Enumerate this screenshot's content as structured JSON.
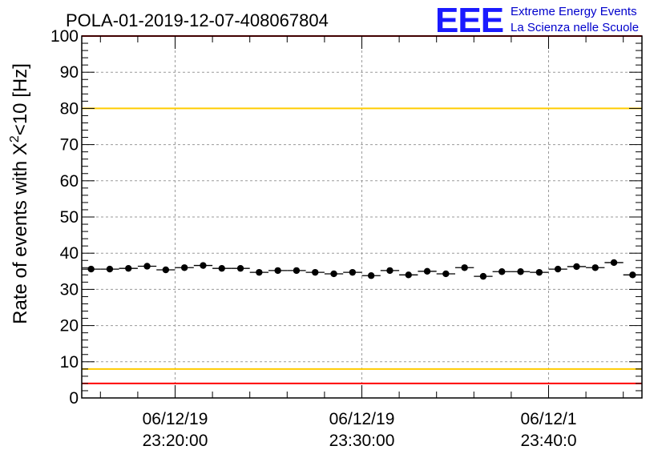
{
  "header": {
    "run_title": "POLA-01-2019-12-07-408067804",
    "logo_letters": "EEE",
    "logo_line1": "Extreme Energy Events",
    "logo_line2": "La Scienza nelle Scuole"
  },
  "chart_data": {
    "type": "scatter",
    "title": "POLA-01-2019-12-07-408067804",
    "ylabel_main": "Rate of events with X",
    "ylabel_sup": "2",
    "ylabel_tail": "<10 [Hz]",
    "xlabel": "",
    "ylim": [
      0,
      100
    ],
    "y_ticks": [
      "0",
      "10",
      "20",
      "30",
      "40",
      "50",
      "60",
      "70",
      "80",
      "90",
      "100"
    ],
    "xlim_minutes": [
      -5,
      25
    ],
    "x_ticks": [
      {
        "minutes": 0,
        "date": "06/12/19",
        "time": "23:20:00"
      },
      {
        "minutes": 10,
        "date": "06/12/19",
        "time": "23:30:00"
      },
      {
        "minutes": 20,
        "date": "06/12/1",
        "time": "23:40:0"
      }
    ],
    "grid": true,
    "reference_lines": [
      {
        "y": 4,
        "color": "#ff0000"
      },
      {
        "y": 8,
        "color": "#ffcc00"
      },
      {
        "y": 80,
        "color": "#ffcc00"
      },
      {
        "y": 100,
        "color": "#ff0000"
      }
    ],
    "series": [
      {
        "bin_width_minutes": 1,
        "x_minutes": [
          -4.5,
          -3.5,
          -2.5,
          -1.5,
          -0.5,
          0.5,
          1.5,
          2.5,
          3.5,
          4.5,
          5.5,
          6.5,
          7.5,
          8.5,
          9.5,
          10.5,
          11.5,
          12.5,
          13.5,
          14.5,
          15.5,
          16.5,
          17.5,
          18.5,
          19.5
        ],
        "values": [
          35.6,
          35.6,
          35.8,
          36.4,
          35.4,
          36.0,
          36.6,
          35.8,
          35.8,
          34.7,
          35.2,
          35.2,
          34.7,
          34.3,
          34.7,
          33.8,
          35.2,
          34.0,
          35.0,
          34.3,
          36.0,
          33.6,
          34.9,
          34.9,
          34.7
        ],
        "color": "#000000"
      }
    ]
  },
  "extra_points": {
    "x_minutes": [
      20.5,
      21.5,
      22.5,
      23.5,
      24.5
    ],
    "values": [
      35.6,
      36.3,
      36.0,
      37.4,
      34.0
    ]
  }
}
